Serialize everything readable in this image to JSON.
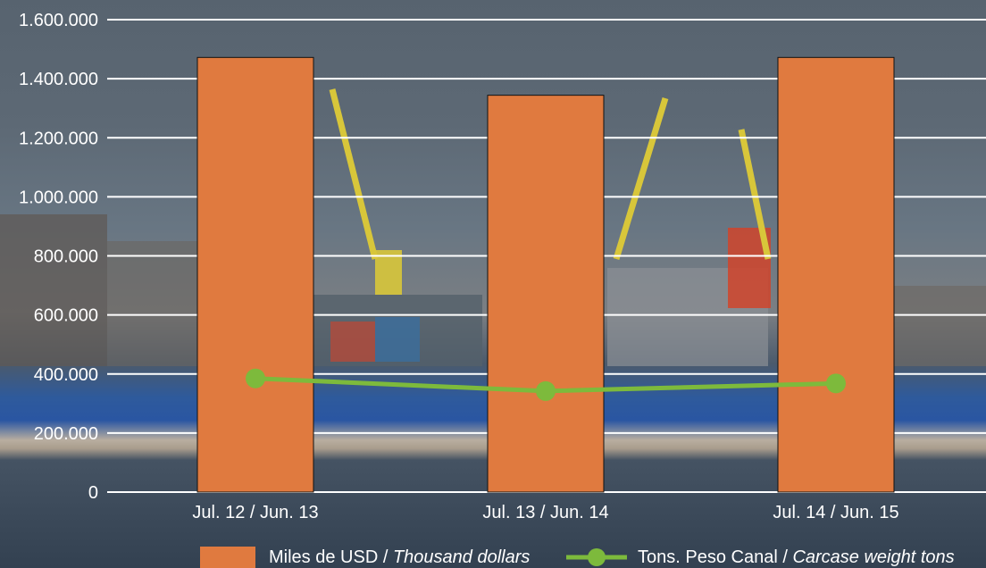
{
  "chart_data": {
    "type": "bar",
    "categories": [
      "Jul. 12 / Jun. 13",
      "Jul. 13 / Jun. 14",
      "Jul. 14 / Jun. 15"
    ],
    "series": [
      {
        "name": "Miles de USD / Thousand dollars",
        "kind": "bar",
        "color": "#e07a3f",
        "values": [
          1472000,
          1344000,
          1472000
        ]
      },
      {
        "name": "Tons. Peso Canal / Carcase weight tons",
        "kind": "line",
        "color": "#7dba3c",
        "values": [
          385000,
          342000,
          368000
        ]
      }
    ],
    "ylim": [
      0,
      1600000
    ],
    "yticks": [
      "0",
      "200.000",
      "400.000",
      "600.000",
      "800.000",
      "1.000.000",
      "1.200.000",
      "1.400.000",
      "1.600.000"
    ],
    "grid": true,
    "legend_position": "bottom",
    "legend": [
      {
        "plain": "Miles de USD / ",
        "italic": "Thousand dollars"
      },
      {
        "plain": "Tons. Peso Canal / ",
        "italic": "Carcase weight tons"
      }
    ]
  }
}
